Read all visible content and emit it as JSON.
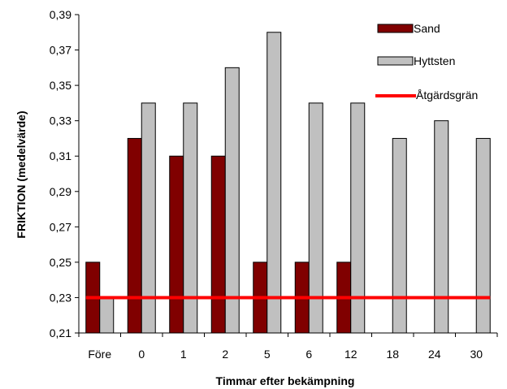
{
  "chart_data": {
    "type": "bar",
    "categories": [
      "Före",
      "0",
      "1",
      "2",
      "5",
      "6",
      "12",
      "18",
      "24",
      "30"
    ],
    "series": [
      {
        "name": "Sand",
        "color": "#800000",
        "values": [
          0.25,
          0.32,
          0.31,
          0.31,
          0.25,
          0.25,
          0.25,
          null,
          null,
          null
        ]
      },
      {
        "name": "Hyttsten",
        "color": "#c0c0c0",
        "values": [
          0.23,
          0.34,
          0.34,
          0.36,
          0.38,
          0.34,
          0.34,
          0.32,
          0.33,
          0.32
        ]
      }
    ],
    "threshold": {
      "name": "Åtgärdsgrän",
      "value": 0.23,
      "color": "#ff0000"
    },
    "xlabel": "Timmar efter bekämpning",
    "ylabel": "FRIKTION (medelvärde)",
    "ylim": [
      0.21,
      0.39
    ],
    "yticks": [
      "0,21",
      "0,23",
      "0,25",
      "0,27",
      "0,29",
      "0,31",
      "0,33",
      "0,35",
      "0,37",
      "0,39"
    ],
    "grid": false,
    "legend_position": "top-right"
  }
}
